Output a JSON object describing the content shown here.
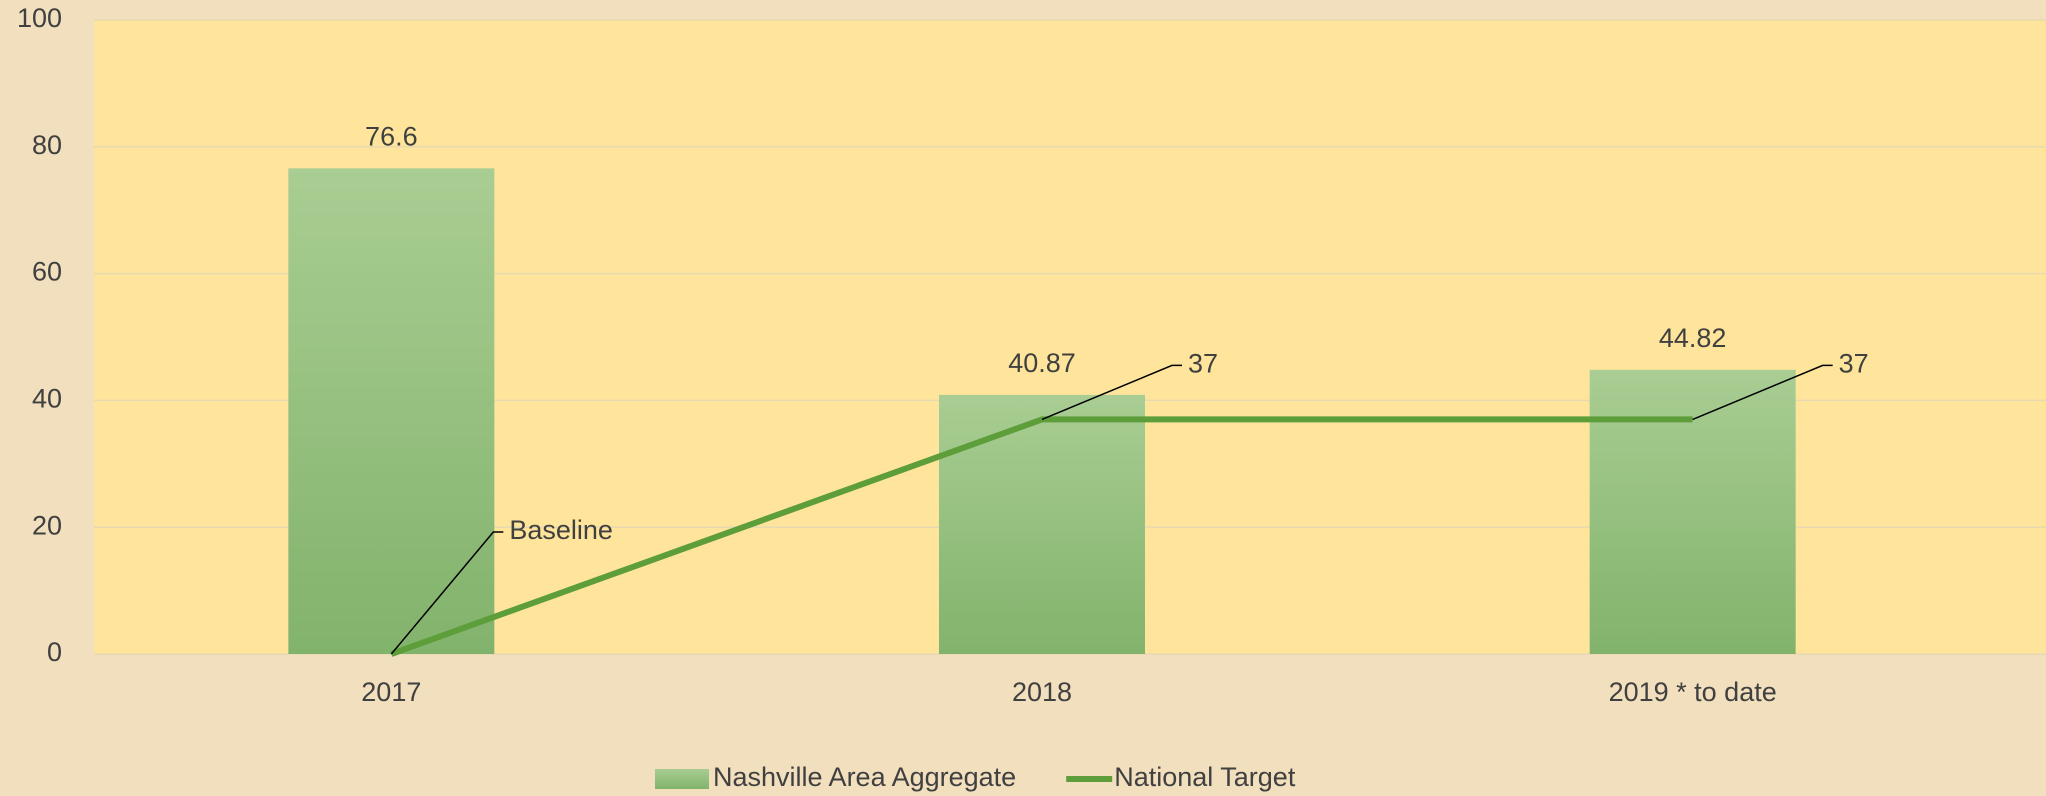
{
  "chart_data": {
    "type": "bar",
    "categories": [
      "2017",
      "2018",
      "2019 * to date"
    ],
    "series": [
      {
        "name": "Nashville Area Aggregate",
        "type": "bar",
        "color": "#98c283",
        "values": [
          76.6,
          40.87,
          44.82
        ]
      },
      {
        "name": "National Target",
        "type": "line",
        "color": "#5e9e3a",
        "values": [
          0,
          37,
          37
        ],
        "annotation": "Baseline"
      }
    ],
    "ylim": [
      0,
      100
    ],
    "yticks": [
      0,
      20,
      40,
      60,
      80,
      100
    ],
    "grid": true,
    "legend": "bottom"
  }
}
